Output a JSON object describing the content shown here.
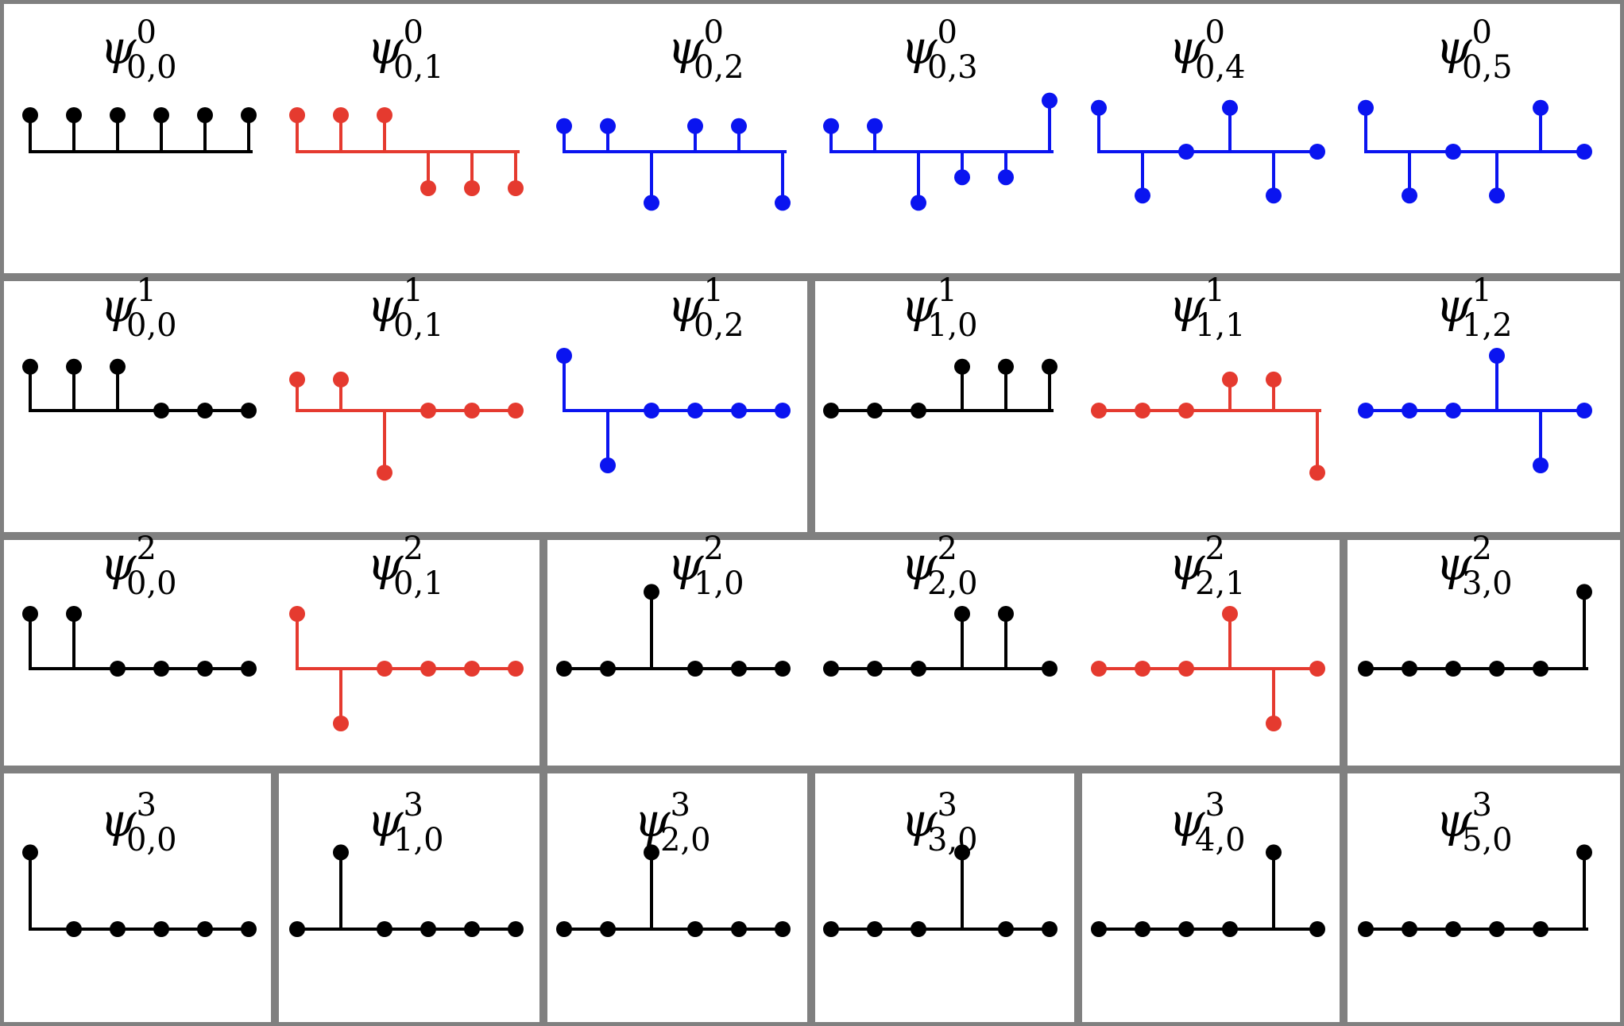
{
  "colors": {
    "black": "#000000",
    "red": "#e53a2f",
    "blue": "#0a14f0",
    "frame": "#808080",
    "background": "#ffffff"
  },
  "rows": [
    {
      "level": 0,
      "plots": [
        {
          "sup": "0",
          "sub": "0,0",
          "color": "black",
          "values": [
            1,
            1,
            1,
            1,
            1,
            1
          ]
        },
        {
          "sup": "0",
          "sub": "0,1",
          "color": "red",
          "values": [
            1,
            1,
            1,
            -1,
            -1,
            -1
          ]
        },
        {
          "sup": "0",
          "sub": "0,2",
          "color": "blue",
          "values": [
            0.7,
            0.7,
            -1.4,
            0.7,
            0.7,
            -1.4
          ]
        },
        {
          "sup": "0",
          "sub": "0,3",
          "color": "blue",
          "values": [
            0.7,
            0.7,
            -1.4,
            -0.7,
            -0.7,
            1.4
          ]
        },
        {
          "sup": "0",
          "sub": "0,4",
          "color": "blue",
          "values": [
            1.2,
            -1.2,
            0,
            1.2,
            -1.2,
            0
          ]
        },
        {
          "sup": "0",
          "sub": "0,5",
          "color": "blue",
          "values": [
            1.2,
            -1.2,
            0,
            -1.2,
            1.2,
            0
          ]
        }
      ]
    },
    {
      "level": 1,
      "plots": [
        {
          "sup": "1",
          "sub": "0,0",
          "color": "black",
          "values": [
            1.2,
            1.2,
            1.2,
            0,
            0,
            0
          ]
        },
        {
          "sup": "1",
          "sub": "0,1",
          "color": "red",
          "values": [
            0.85,
            0.85,
            -1.7,
            0,
            0,
            0
          ]
        },
        {
          "sup": "1",
          "sub": "0,2",
          "color": "blue",
          "values": [
            1.5,
            -1.5,
            0,
            0,
            0,
            0
          ]
        },
        {
          "sup": "1",
          "sub": "1,0",
          "color": "black",
          "values": [
            0,
            0,
            0,
            1.2,
            1.2,
            1.2
          ]
        },
        {
          "sup": "1",
          "sub": "1,1",
          "color": "red",
          "values": [
            0,
            0,
            0,
            0.85,
            0.85,
            -1.7
          ]
        },
        {
          "sup": "1",
          "sub": "1,2",
          "color": "blue",
          "values": [
            0,
            0,
            0,
            1.5,
            -1.5,
            0
          ]
        }
      ]
    },
    {
      "level": 2,
      "plots": [
        {
          "sup": "2",
          "sub": "0,0",
          "color": "black",
          "values": [
            1.5,
            1.5,
            0,
            0,
            0,
            0
          ]
        },
        {
          "sup": "2",
          "sub": "0,1",
          "color": "red",
          "values": [
            1.5,
            -1.5,
            0,
            0,
            0,
            0
          ]
        },
        {
          "sup": "2",
          "sub": "1,0",
          "color": "black",
          "values": [
            0,
            0,
            2.1,
            0,
            0,
            0
          ]
        },
        {
          "sup": "2",
          "sub": "2,0",
          "color": "black",
          "values": [
            0,
            0,
            0,
            1.5,
            1.5,
            0
          ]
        },
        {
          "sup": "2",
          "sub": "2,1",
          "color": "red",
          "values": [
            0,
            0,
            0,
            1.5,
            -1.5,
            0
          ]
        },
        {
          "sup": "2",
          "sub": "3,0",
          "color": "black",
          "values": [
            0,
            0,
            0,
            0,
            0,
            2.1
          ]
        }
      ]
    },
    {
      "level": 3,
      "plots": [
        {
          "sup": "3",
          "sub": "0,0",
          "color": "black",
          "values": [
            2.1,
            0,
            0,
            0,
            0,
            0
          ]
        },
        {
          "sup": "3",
          "sub": "1,0",
          "color": "black",
          "values": [
            0,
            2.1,
            0,
            0,
            0,
            0
          ]
        },
        {
          "sup": "3",
          "sub": "2,0",
          "color": "black",
          "values": [
            0,
            0,
            2.1,
            0,
            0,
            0
          ]
        },
        {
          "sup": "3",
          "sub": "3,0",
          "color": "black",
          "values": [
            0,
            0,
            0,
            2.1,
            0,
            0
          ]
        },
        {
          "sup": "3",
          "sub": "4,0",
          "color": "black",
          "values": [
            0,
            0,
            0,
            0,
            2.1,
            0
          ]
        },
        {
          "sup": "3",
          "sub": "5,0",
          "color": "black",
          "values": [
            0,
            0,
            0,
            0,
            0,
            2.1
          ]
        }
      ]
    }
  ]
}
